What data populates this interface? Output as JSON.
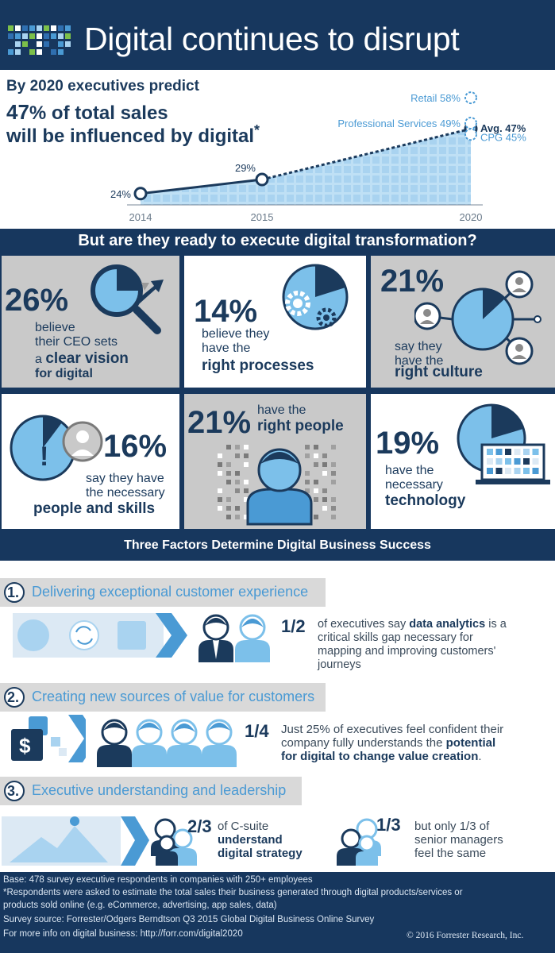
{
  "header": {
    "title": "Digital continues to disrupt"
  },
  "prediction": {
    "line1": "By 2020 executives predict",
    "big_pct": "47",
    "big_line1_rest": "% of total sales",
    "big_line2": "will be influenced by digital",
    "asterisk": "*"
  },
  "chart_data": {
    "type": "area",
    "x": [
      "2014",
      "2015",
      "2020"
    ],
    "values": [
      24,
      29,
      47
    ],
    "point_labels": [
      "24%",
      "29%",
      "Avg. 47%"
    ],
    "annotations": [
      {
        "label": "Retail 58%",
        "value": 58
      },
      {
        "label": "Professional Services 49%",
        "value": 49
      },
      {
        "label": "Avg. 47%",
        "value": 47
      },
      {
        "label": "CPG 45%",
        "value": 45
      }
    ],
    "colors": {
      "fill": "#bfe0f5",
      "line": "#1b3a5c",
      "point": "#1b3a5c"
    }
  },
  "ready": {
    "title": "But are they ready to execute digital transformation?"
  },
  "stats": [
    {
      "pct": "26%",
      "lines": [
        "believe",
        "their CEO sets",
        "a"
      ],
      "bold1": "clear vision",
      "bold2": "for digital",
      "icon": "magnifier-pie-icon"
    },
    {
      "pct": "14%",
      "lines": [
        "believe they",
        "have the"
      ],
      "bold1": "right processes",
      "icon": "gears-pie-icon"
    },
    {
      "pct": "21%",
      "lines": [
        "say they",
        "have the"
      ],
      "bold1": "right culture",
      "icon": "network-pie-icon"
    },
    {
      "pct": "16%",
      "lines": [
        "say they have",
        "the necessary"
      ],
      "bold1": "people and skills",
      "icon": "person-pie-icon"
    },
    {
      "pct": "21%",
      "lines": [
        "have the"
      ],
      "bold1": "right people",
      "icon": "person-bust-icon"
    },
    {
      "pct": "19%",
      "lines": [
        "have the",
        "necessary"
      ],
      "bold1": "technology",
      "icon": "laptop-pie-icon"
    }
  ],
  "factors": {
    "title": "Three Factors Determine Digital Business Success",
    "items": [
      {
        "num": "1.",
        "title": "Delivering exceptional customer experience",
        "frac": "1/2",
        "desc": [
          "of executives say",
          "data analytics",
          "is a",
          "critical skills gap necessary for",
          "mapping and improving customers'",
          "journeys"
        ]
      },
      {
        "num": "2.",
        "title": "Creating new sources of value for customers",
        "frac": "1/4",
        "desc": [
          "Just 25% of executives feel confident their",
          "company fully understands the",
          "potential",
          "for digital to change value creation",
          "."
        ]
      },
      {
        "num": "3.",
        "title": "Executive understanding and leadership",
        "frac_a": "2/3",
        "desc_a": [
          "of C-suite",
          "understand",
          "digital strategy"
        ],
        "frac_b": "1/3",
        "desc_b": [
          "but only 1/3 of",
          "senior managers",
          "feel the same"
        ]
      }
    ]
  },
  "footer": {
    "lines": [
      "Base: 478 survey executive  respondents in companies with 250+ employees",
      "*Respondents were asked to estimate the total sales their business generated through digital products/services or",
      "products sold online (e.g. eCommerce, advertising, app sales, data)",
      "Survey source:  Forrester/Odgers Berndtson Q3 2015 Global Digital Business Online Survey",
      "For more info on digital business: http://forr.com/digital2020"
    ],
    "copyright": "© 2016 Forrester Research, Inc."
  }
}
